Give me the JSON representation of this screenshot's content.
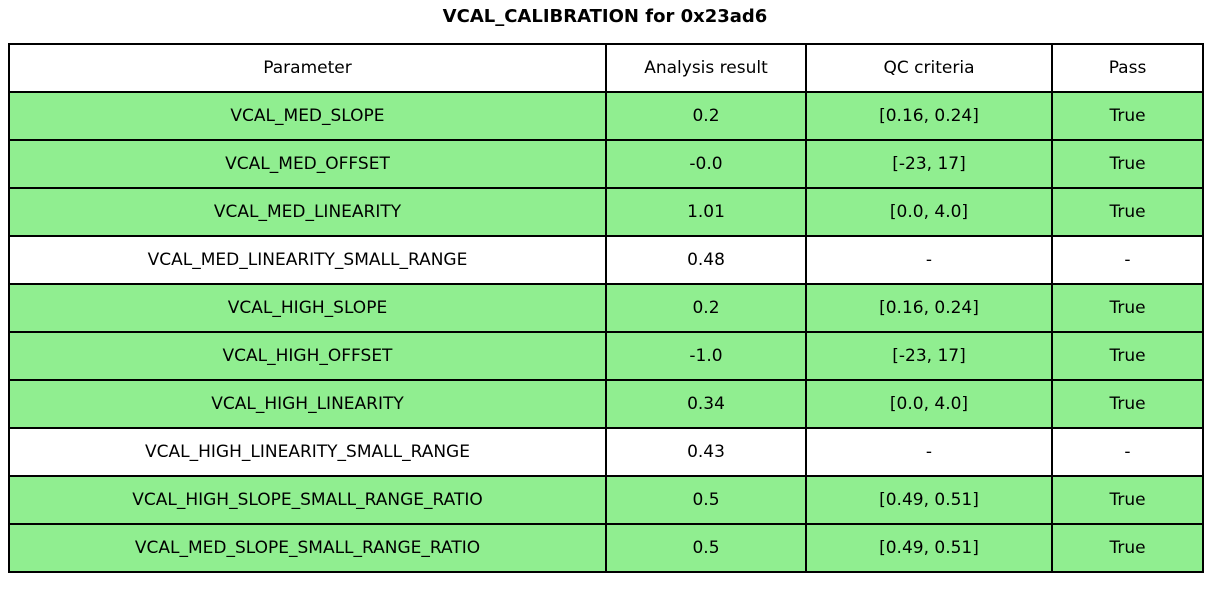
{
  "title": "VCAL_CALIBRATION for 0x23ad6",
  "table": {
    "columns": [
      "Parameter",
      "Analysis result",
      "QC criteria",
      "Pass"
    ],
    "rows": [
      {
        "parameter": "VCAL_MED_SLOPE",
        "result": "0.2",
        "qc": "[0.16, 0.24]",
        "pass": "True"
      },
      {
        "parameter": "VCAL_MED_OFFSET",
        "result": "-0.0",
        "qc": "[-23, 17]",
        "pass": "True"
      },
      {
        "parameter": "VCAL_MED_LINEARITY",
        "result": "1.01",
        "qc": "[0.0, 4.0]",
        "pass": "True"
      },
      {
        "parameter": "VCAL_MED_LINEARITY_SMALL_RANGE",
        "result": "0.48",
        "qc": "-",
        "pass": "-"
      },
      {
        "parameter": "VCAL_HIGH_SLOPE",
        "result": "0.2",
        "qc": "[0.16, 0.24]",
        "pass": "True"
      },
      {
        "parameter": "VCAL_HIGH_OFFSET",
        "result": "-1.0",
        "qc": "[-23, 17]",
        "pass": "True"
      },
      {
        "parameter": "VCAL_HIGH_LINEARITY",
        "result": "0.34",
        "qc": "[0.0, 4.0]",
        "pass": "True"
      },
      {
        "parameter": "VCAL_HIGH_LINEARITY_SMALL_RANGE",
        "result": "0.43",
        "qc": "-",
        "pass": "-"
      },
      {
        "parameter": "VCAL_HIGH_SLOPE_SMALL_RANGE_RATIO",
        "result": "0.5",
        "qc": "[0.49, 0.51]",
        "pass": "True"
      },
      {
        "parameter": "VCAL_MED_SLOPE_SMALL_RANGE_RATIO",
        "result": "0.5",
        "qc": "[0.49, 0.51]",
        "pass": "True"
      }
    ]
  },
  "colors": {
    "pass_row_bg": "#90EE90",
    "neutral_row_bg": "#FFFFFF",
    "border": "#000000"
  },
  "chart_data": {
    "type": "table",
    "title": "VCAL_CALIBRATION for 0x23ad6",
    "columns": [
      "Parameter",
      "Analysis result",
      "QC criteria",
      "Pass"
    ],
    "rows": [
      [
        "VCAL_MED_SLOPE",
        "0.2",
        "[0.16, 0.24]",
        "True"
      ],
      [
        "VCAL_MED_OFFSET",
        "-0.0",
        "[-23, 17]",
        "True"
      ],
      [
        "VCAL_MED_LINEARITY",
        "1.01",
        "[0.0, 4.0]",
        "True"
      ],
      [
        "VCAL_MED_LINEARITY_SMALL_RANGE",
        "0.48",
        "-",
        "-"
      ],
      [
        "VCAL_HIGH_SLOPE",
        "0.2",
        "[0.16, 0.24]",
        "True"
      ],
      [
        "VCAL_HIGH_OFFSET",
        "-1.0",
        "[-23, 17]",
        "True"
      ],
      [
        "VCAL_HIGH_LINEARITY",
        "0.34",
        "[0.0, 4.0]",
        "True"
      ],
      [
        "VCAL_HIGH_LINEARITY_SMALL_RANGE",
        "0.43",
        "-",
        "-"
      ],
      [
        "VCAL_HIGH_SLOPE_SMALL_RANGE_RATIO",
        "0.5",
        "[0.49, 0.51]",
        "True"
      ],
      [
        "VCAL_MED_SLOPE_SMALL_RANGE_RATIO",
        "0.5",
        "[0.49, 0.51]",
        "True"
      ]
    ],
    "row_highlight": [
      "pass",
      "pass",
      "pass",
      "neutral",
      "pass",
      "pass",
      "pass",
      "neutral",
      "pass",
      "pass"
    ],
    "layout": "highlighted rows = QC passed (green), neutral rows = no QC criteria"
  }
}
